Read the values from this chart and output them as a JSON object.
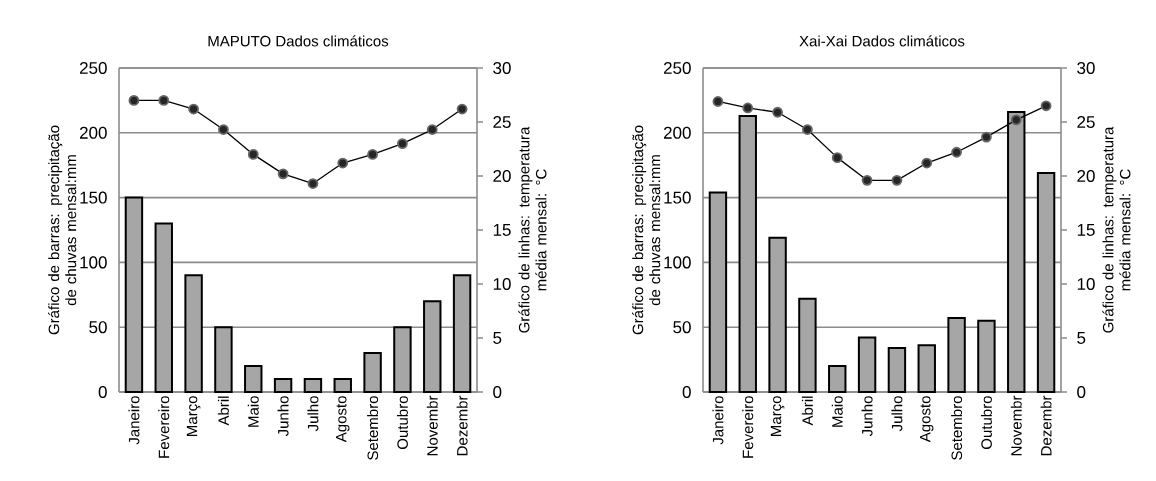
{
  "chart_data": [
    {
      "type": "bar",
      "title": "MAPUTO Dados climáticos",
      "ylabel": "Gráfico de barras: precipitação de chuvas mensal:mm",
      "y2label": "Gráfico de linhas: temperatura média mensal: °C",
      "categories": [
        "Janeiro",
        "Fevereiro",
        "Março",
        "Abril",
        "Maio",
        "Junho",
        "Julho",
        "Agosto",
        "Setembro",
        "Outubro",
        "Novembr",
        "Dezembr"
      ],
      "series": [
        {
          "color": "#a6a6a6",
          "values": [
            150,
            130,
            90,
            50,
            20,
            10,
            10,
            10,
            30,
            50,
            70,
            90
          ]
        },
        {
          "type": "line",
          "axis": "y2",
          "color": "#000000",
          "marker": "circle",
          "values": [
            27.0,
            27.0,
            26.2,
            24.3,
            22.0,
            20.2,
            19.3,
            21.2,
            22.0,
            23.0,
            24.3,
            26.2
          ]
        }
      ],
      "ylim": [
        0,
        250
      ],
      "yticks": [
        0,
        50,
        100,
        150,
        200,
        250
      ],
      "y2lim": [
        0,
        30
      ],
      "y2ticks": [
        0,
        5,
        10,
        15,
        20,
        25,
        30
      ],
      "grid": "y"
    },
    {
      "type": "bar",
      "title": "Xai-Xai Dados climáticos",
      "ylabel": "Gráfico de barras: precipitação de chuvas mensal:mm",
      "y2label": "Gráfico de linhas: temperatura média mensal: °C",
      "categories": [
        "Janeiro",
        "Fevereiro",
        "Março",
        "Abril",
        "Maio",
        "Junho",
        "Julho",
        "Agosto",
        "Setembro",
        "Outubro",
        "Novembr",
        "Dezembr"
      ],
      "series": [
        {
          "color": "#a6a6a6",
          "values": [
            154,
            213,
            119,
            72,
            20,
            42,
            34,
            36,
            57,
            55,
            216,
            169
          ]
        },
        {
          "type": "line",
          "axis": "y2",
          "color": "#000000",
          "marker": "circle",
          "values": [
            26.9,
            26.3,
            25.9,
            24.3,
            21.7,
            19.6,
            19.6,
            21.2,
            22.2,
            23.6,
            25.2,
            26.5
          ]
        }
      ],
      "ylim": [
        0,
        250
      ],
      "yticks": [
        0,
        50,
        100,
        150,
        200,
        250
      ],
      "y2lim": [
        0,
        30
      ],
      "y2ticks": [
        0,
        5,
        10,
        15,
        20,
        25,
        30
      ],
      "grid": "y"
    }
  ]
}
